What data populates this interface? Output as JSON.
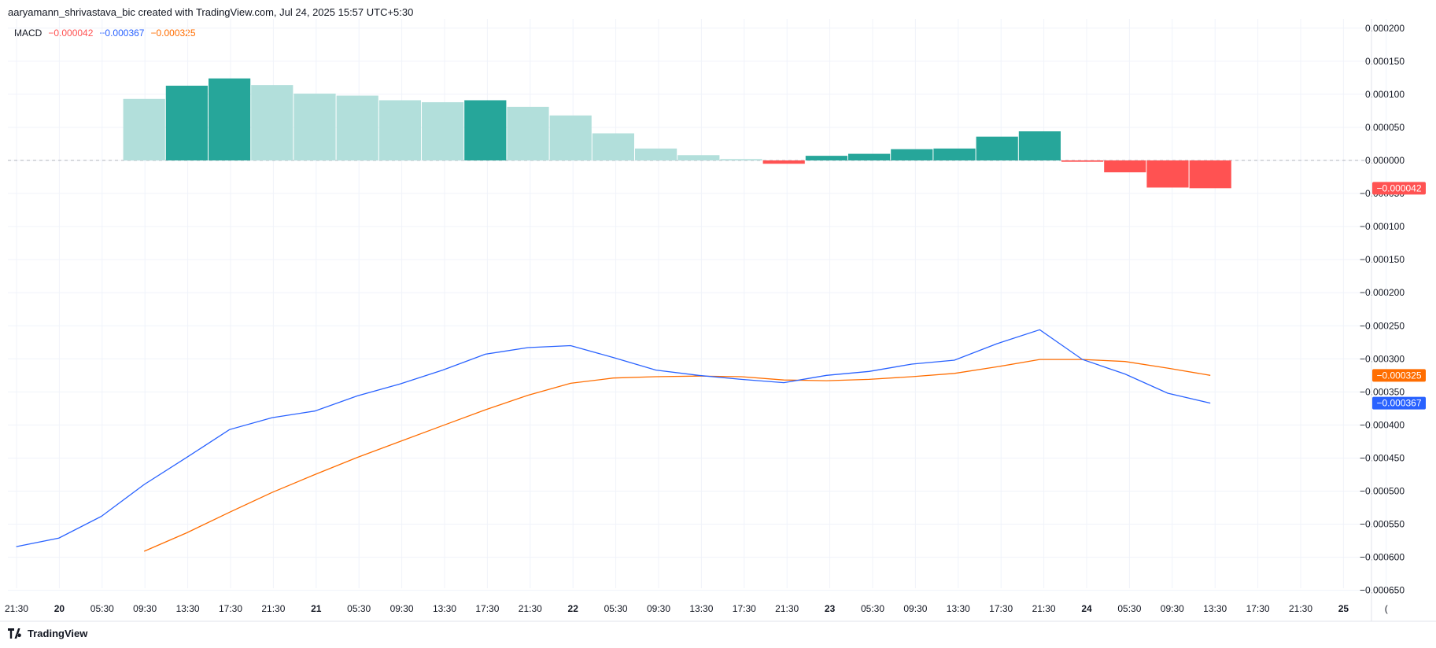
{
  "header": {
    "attribution": "aaryamann_shrivastava_bic created with TradingView.com, Jul 24, 2025 15:57 UTC+5:30"
  },
  "legend": {
    "name": "MACD",
    "histogram_value": "−0.000042",
    "macd_value": "−0.000367",
    "signal_value": "−0.000325"
  },
  "footer": {
    "brand": "TradingView"
  },
  "colors": {
    "hist_up_strong": "#26a69a",
    "hist_up_weak": "#b2dfdb",
    "hist_down_strong": "#ff5252",
    "hist_down_weak": "#ffcdd2",
    "macd_line": "#2962ff",
    "signal_line": "#ff6d00",
    "grid": "#f0f3fa",
    "axis_text": "#131722"
  },
  "chart_data": {
    "type": "bar",
    "ylim": [
      -0.00068,
      0.00021
    ],
    "y_ticks": [
      "0.000200",
      "0.000150",
      "0.000100",
      "0.000050",
      "0.000000",
      "−0.000050",
      "−0.000100",
      "−0.000150",
      "−0.000200",
      "−0.000250",
      "−0.000300",
      "−0.000350",
      "−0.000400",
      "−0.000450",
      "−0.000500",
      "−0.000550",
      "−0.000600",
      "−0.000650"
    ],
    "y_tick_values": [
      0.0002,
      0.00015,
      0.0001,
      5e-05,
      0,
      -5e-05,
      -0.0001,
      -0.00015,
      -0.0002,
      -0.00025,
      -0.0003,
      -0.00035,
      -0.0004,
      -0.00045,
      -0.0005,
      -0.00055,
      -0.0006,
      -0.00065
    ],
    "x_ticks": [
      "21:30",
      "20",
      "05:30",
      "09:30",
      "13:30",
      "17:30",
      "21:30",
      "21",
      "05:30",
      "09:30",
      "13:30",
      "17:30",
      "21:30",
      "22",
      "05:30",
      "09:30",
      "13:30",
      "17:30",
      "21:30",
      "23",
      "05:30",
      "09:30",
      "13:30",
      "17:30",
      "21:30",
      "24",
      "05:30",
      "09:30",
      "13:30",
      "17:30",
      "21:30",
      "25",
      "("
    ],
    "x_tick_bold": [
      "20",
      "21",
      "22",
      "23",
      "24",
      "25"
    ],
    "series": [
      {
        "name": "Histogram",
        "type": "bar",
        "bar_index": [
          3,
          4,
          5,
          6,
          7,
          8,
          9,
          10,
          11,
          12,
          13,
          14,
          15,
          16,
          17,
          18,
          19,
          20,
          21,
          22,
          23,
          24,
          25,
          26,
          27,
          28
        ],
        "values": [
          9.3e-05,
          0.000113,
          0.000124,
          0.000114,
          0.000101,
          9.8e-05,
          9.1e-05,
          8.8e-05,
          9.1e-05,
          8.1e-05,
          6.8e-05,
          4.1e-05,
          1.8e-05,
          8e-06,
          2e-06,
          -5e-06,
          7e-06,
          1e-05,
          1.7e-05,
          1.8e-05,
          3.6e-05,
          4.4e-05,
          -2e-06,
          -1.8e-05,
          -4.1e-05,
          -4.2e-05
        ],
        "shade": [
          "weak",
          "strong",
          "strong",
          "weak",
          "weak",
          "weak",
          "weak",
          "weak",
          "strong",
          "weak",
          "weak",
          "weak",
          "weak",
          "weak",
          "weak",
          "strong",
          "strong",
          "strong",
          "strong",
          "strong",
          "strong",
          "strong",
          "strong",
          "strong",
          "strong",
          "strong"
        ]
      },
      {
        "name": "MACD",
        "type": "line",
        "x_index": [
          0,
          1,
          2,
          3,
          4,
          5,
          6,
          7,
          8,
          9,
          10,
          11,
          12,
          13,
          14,
          15,
          16,
          17,
          18,
          19,
          20,
          21,
          22,
          23,
          24,
          25,
          26,
          27,
          28
        ],
        "values": [
          -0.000584,
          -0.000571,
          -0.000538,
          -0.00049,
          -0.000449,
          -0.000407,
          -0.000389,
          -0.000379,
          -0.000356,
          -0.000338,
          -0.000317,
          -0.000293,
          -0.000283,
          -0.00028,
          -0.000298,
          -0.000317,
          -0.000325,
          -0.000331,
          -0.000336,
          -0.000325,
          -0.000319,
          -0.000308,
          -0.000302,
          -0.000277,
          -0.000256,
          -0.000301,
          -0.000323,
          -0.000352,
          -0.000367
        ]
      },
      {
        "name": "Signal",
        "type": "line",
        "x_index": [
          3,
          4,
          5,
          6,
          7,
          8,
          9,
          10,
          11,
          12,
          13,
          14,
          15,
          16,
          17,
          18,
          19,
          20,
          21,
          22,
          23,
          24,
          25,
          26,
          27,
          28
        ],
        "values": [
          -0.000591,
          -0.000563,
          -0.000532,
          -0.000502,
          -0.000475,
          -0.000449,
          -0.000425,
          -0.000401,
          -0.000377,
          -0.000355,
          -0.000337,
          -0.000329,
          -0.000327,
          -0.000326,
          -0.000327,
          -0.000332,
          -0.000333,
          -0.000331,
          -0.000327,
          -0.000322,
          -0.000312,
          -0.000301,
          -0.000301,
          -0.000304,
          -0.000314,
          -0.000325
        ]
      }
    ],
    "price_labels": [
      {
        "text": "−0.000042",
        "value": -4.2e-05,
        "color": "#ff5252"
      },
      {
        "text": "−0.000325",
        "value": -0.000325,
        "color": "#ff6d00"
      },
      {
        "text": "−0.000367",
        "value": -0.000367,
        "color": "#2962ff"
      }
    ],
    "grid": true
  }
}
